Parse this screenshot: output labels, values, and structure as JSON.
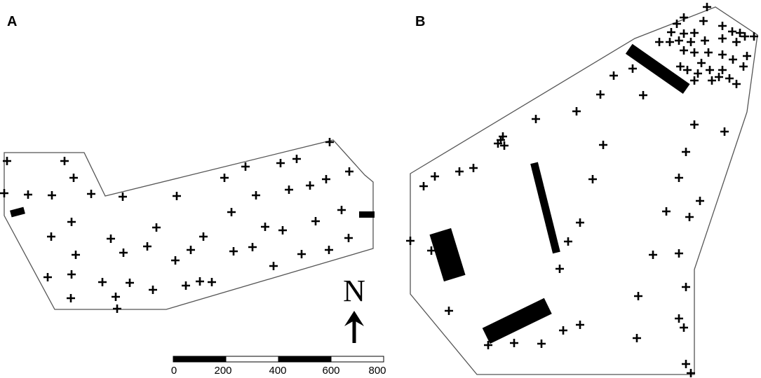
{
  "panels": [
    {
      "label": "A"
    },
    {
      "label": "B"
    }
  ],
  "north_arrow": {
    "letter": "N"
  },
  "scale_bar": {
    "ticks": [
      "0",
      "200",
      "400",
      "600",
      "800"
    ]
  },
  "colors": {
    "boundary": "#555555",
    "marker": "#000000",
    "background": "#ffffff"
  }
}
